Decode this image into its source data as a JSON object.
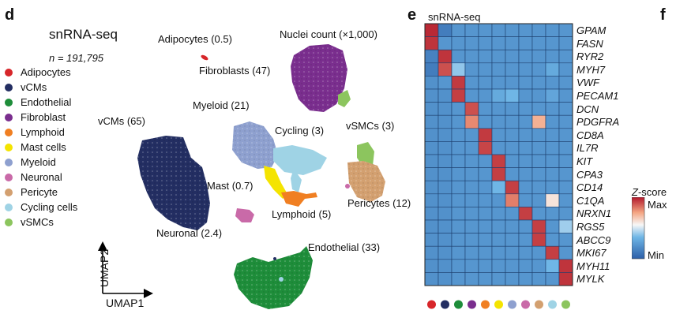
{
  "panel_d": {
    "letter": "d",
    "title": "snRNA-seq",
    "n_label": "n = 191,795",
    "legend": [
      {
        "label": "Adipocytes",
        "color": "#d7262a"
      },
      {
        "label": "vCMs",
        "color": "#232e62"
      },
      {
        "label": "Endothelial",
        "color": "#1e8d3a"
      },
      {
        "label": "Fibroblast",
        "color": "#7a2e8e"
      },
      {
        "label": "Lymphoid",
        "color": "#f07f22"
      },
      {
        "label": "Mast cells",
        "color": "#f4e400"
      },
      {
        "label": "Myeloid",
        "color": "#8ea0cf"
      },
      {
        "label": "Neuronal",
        "color": "#c96aa8"
      },
      {
        "label": "Pericyte",
        "color": "#d3a070"
      },
      {
        "label": "Cycling cells",
        "color": "#9fd3e5"
      },
      {
        "label": "vSMCs",
        "color": "#8cc55e"
      }
    ],
    "nuclei_count_label": "Nuclei count (×1,000)",
    "cluster_labels": {
      "adipocytes": "Adipocytes (0.5)",
      "fibroblasts": "Fibroblasts (47)",
      "myeloid": "Myeloid (21)",
      "vcms": "vCMs (65)",
      "cycling": "Cycling (3)",
      "vsmcs": "vSMCs (3)",
      "mast": "Mast (0.7)",
      "lymphoid": "Lymphoid (5)",
      "pericytes": "Pericytes (12)",
      "neuronal": "Neuronal (2.4)",
      "endothelial": "Endothelial (33)"
    },
    "axis": {
      "x": "UMAP1",
      "y": "UMAP2"
    }
  },
  "panel_e": {
    "letter": "e",
    "title": "snRNA-seq",
    "genes": [
      "GPAM",
      "FASN",
      "RYR2",
      "MYH7",
      "VWF",
      "PECAM1",
      "DCN",
      "PDGFRA",
      "CD8A",
      "IL7R",
      "KIT",
      "CPA3",
      "CD14",
      "C1QA",
      "NRXN1",
      "RGS5",
      "ABCC9",
      "MKI67",
      "MYH11",
      "MYLK"
    ],
    "legend_title": "Z-score",
    "legend_max": "Max",
    "legend_min": "Min"
  },
  "panel_f": {
    "letter": "f"
  },
  "chart_data": {
    "type": "heatmap",
    "title": "snRNA-seq",
    "rows": [
      "GPAM",
      "FASN",
      "RYR2",
      "MYH7",
      "VWF",
      "PECAM1",
      "DCN",
      "PDGFRA",
      "CD8A",
      "IL7R",
      "KIT",
      "CPA3",
      "CD14",
      "C1QA",
      "NRXN1",
      "RGS5",
      "ABCC9",
      "MKI67",
      "MYH11",
      "MYLK"
    ],
    "columns": [
      "Adipocytes",
      "vCMs",
      "Endothelial",
      "Fibroblast",
      "Lymphoid",
      "Mast cells",
      "Myeloid",
      "Neuronal",
      "Pericyte",
      "Cycling cells",
      "vSMCs"
    ],
    "column_colors": [
      "#d7262a",
      "#232e62",
      "#1e8d3a",
      "#7a2e8e",
      "#f07f22",
      "#f4e400",
      "#8ea0cf",
      "#c96aa8",
      "#d3a070",
      "#9fd3e5",
      "#8cc55e"
    ],
    "value_scale": "z-score, 0 = min, 1 = max",
    "values": [
      [
        0.97,
        0.12,
        0.22,
        0.22,
        0.22,
        0.22,
        0.22,
        0.22,
        0.22,
        0.22,
        0.22
      ],
      [
        0.95,
        0.22,
        0.22,
        0.22,
        0.22,
        0.22,
        0.22,
        0.22,
        0.22,
        0.22,
        0.22
      ],
      [
        0.14,
        0.95,
        0.22,
        0.22,
        0.22,
        0.22,
        0.22,
        0.22,
        0.22,
        0.22,
        0.22
      ],
      [
        0.12,
        0.9,
        0.4,
        0.22,
        0.22,
        0.22,
        0.22,
        0.22,
        0.22,
        0.3,
        0.22
      ],
      [
        0.2,
        0.22,
        0.94,
        0.22,
        0.22,
        0.22,
        0.22,
        0.22,
        0.22,
        0.22,
        0.22
      ],
      [
        0.2,
        0.2,
        0.93,
        0.22,
        0.22,
        0.3,
        0.35,
        0.22,
        0.22,
        0.28,
        0.22
      ],
      [
        0.2,
        0.2,
        0.22,
        0.9,
        0.22,
        0.22,
        0.22,
        0.22,
        0.22,
        0.22,
        0.22
      ],
      [
        0.2,
        0.2,
        0.22,
        0.8,
        0.22,
        0.22,
        0.22,
        0.22,
        0.72,
        0.22,
        0.22
      ],
      [
        0.2,
        0.2,
        0.22,
        0.22,
        0.94,
        0.22,
        0.22,
        0.22,
        0.22,
        0.22,
        0.22
      ],
      [
        0.2,
        0.2,
        0.22,
        0.22,
        0.92,
        0.22,
        0.22,
        0.22,
        0.22,
        0.22,
        0.22
      ],
      [
        0.2,
        0.2,
        0.22,
        0.22,
        0.22,
        0.93,
        0.22,
        0.22,
        0.22,
        0.22,
        0.22
      ],
      [
        0.2,
        0.2,
        0.22,
        0.22,
        0.22,
        0.93,
        0.22,
        0.22,
        0.22,
        0.22,
        0.22
      ],
      [
        0.2,
        0.2,
        0.22,
        0.22,
        0.22,
        0.35,
        0.93,
        0.22,
        0.22,
        0.22,
        0.22
      ],
      [
        0.2,
        0.2,
        0.22,
        0.22,
        0.22,
        0.22,
        0.82,
        0.22,
        0.22,
        0.6,
        0.22
      ],
      [
        0.2,
        0.2,
        0.22,
        0.22,
        0.22,
        0.22,
        0.22,
        0.93,
        0.22,
        0.22,
        0.22
      ],
      [
        0.2,
        0.2,
        0.22,
        0.22,
        0.22,
        0.22,
        0.22,
        0.22,
        0.93,
        0.22,
        0.42
      ],
      [
        0.2,
        0.2,
        0.22,
        0.22,
        0.22,
        0.22,
        0.22,
        0.22,
        0.93,
        0.22,
        0.22
      ],
      [
        0.2,
        0.2,
        0.22,
        0.22,
        0.22,
        0.22,
        0.22,
        0.22,
        0.22,
        0.93,
        0.22
      ],
      [
        0.2,
        0.2,
        0.22,
        0.22,
        0.22,
        0.22,
        0.22,
        0.22,
        0.22,
        0.35,
        0.95
      ],
      [
        0.2,
        0.2,
        0.22,
        0.22,
        0.22,
        0.22,
        0.22,
        0.22,
        0.22,
        0.22,
        0.95
      ]
    ]
  }
}
